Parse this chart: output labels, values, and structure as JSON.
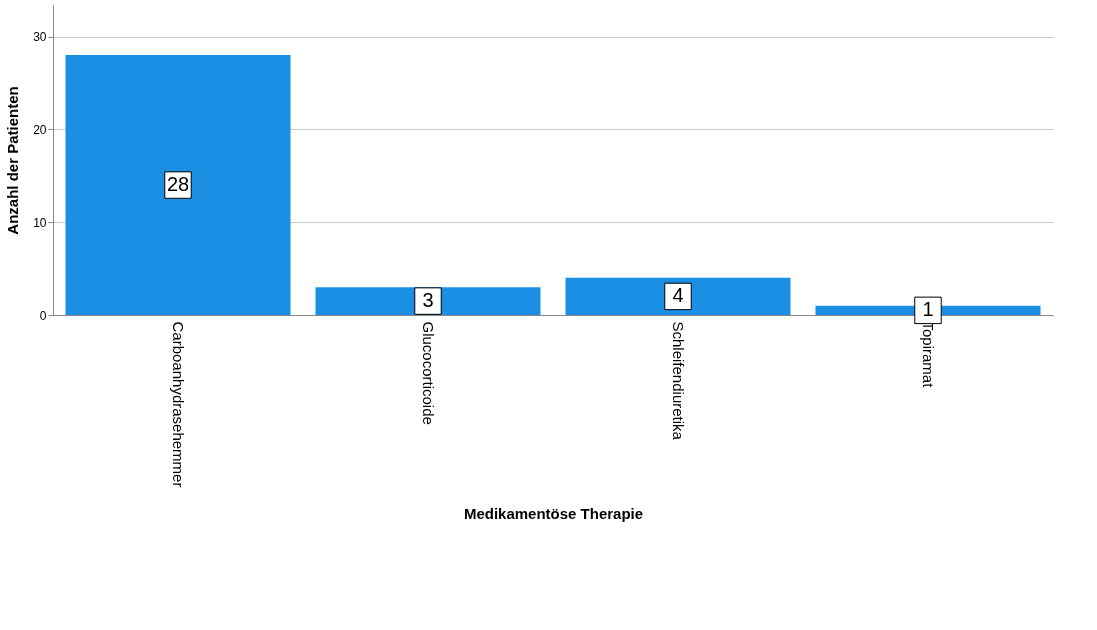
{
  "chart_data": {
    "type": "bar",
    "xlabel": "Medikamentöse Therapie",
    "ylabel": "Anzahl der Patienten",
    "categories": [
      "Carboanhydrasehemmer",
      "Glucocorticoide",
      "Schleifendiuretika",
      "Topiramat"
    ],
    "values": [
      28,
      3,
      4,
      1
    ],
    "color": "#1a8fe3",
    "ylim": [
      0,
      33.4
    ],
    "yticks": [
      0,
      10,
      20,
      30
    ],
    "grid": "y",
    "data_labels": true
  }
}
